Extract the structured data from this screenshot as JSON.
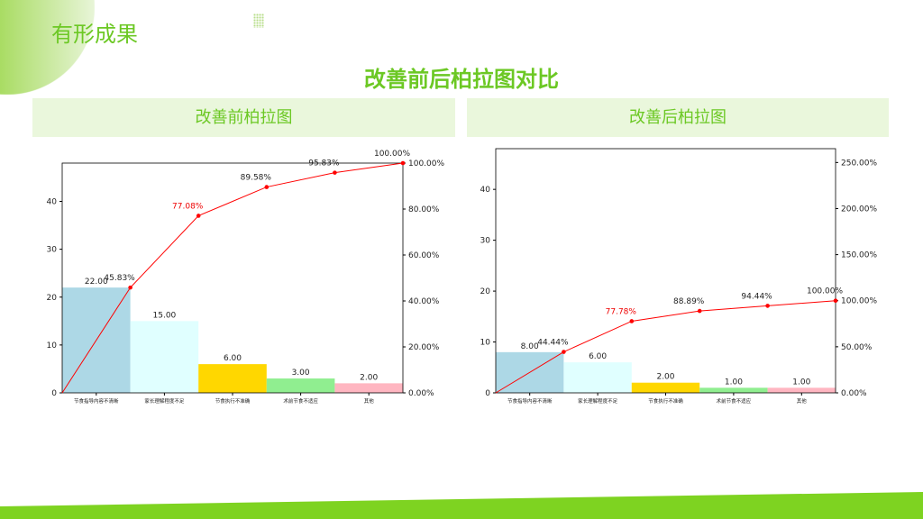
{
  "header": {
    "title": "有形成果",
    "main_title": "改善前后柏拉图对比"
  },
  "panels": [
    "改善前柏拉图",
    "改善后柏拉图"
  ],
  "chart_data": [
    {
      "type": "bar+line",
      "title": "改善前柏拉图",
      "categories": [
        "节食指导内容不清晰",
        "家长理解程度不足",
        "节食执行不准确",
        "术前节食不适应",
        "其他"
      ],
      "values": [
        22,
        15,
        6,
        3,
        2
      ],
      "value_labels": [
        "22.00",
        "15.00",
        "6.00",
        "3.00",
        "2.00"
      ],
      "cumulative_pct": [
        45.83,
        77.08,
        89.58,
        95.83,
        100
      ],
      "cumulative_labels": [
        "45.83%",
        "77.08%",
        "89.58%",
        "95.83%",
        "100.00%"
      ],
      "ylim": [
        0,
        48
      ],
      "y_ticks": [
        "0",
        "10",
        "20",
        "30",
        "40"
      ],
      "y2lim": [
        0,
        100
      ],
      "y2_ticks": [
        "0.00%",
        "20.00%",
        "40.00%",
        "60.00%",
        "80.00%",
        "100.00%"
      ],
      "bar_colors": [
        "#add8e6",
        "#e0ffff",
        "#ffd700",
        "#90ee90",
        "#ffb6c1"
      ],
      "line_color": "#ff0000",
      "highlight_index": 1
    },
    {
      "type": "bar+line",
      "title": "改善后柏拉图",
      "categories": [
        "节食指导内容不清晰",
        "家长理解程度不足",
        "节食执行不准确",
        "术前节食不适应",
        "其他"
      ],
      "values": [
        8,
        6,
        2,
        1,
        1
      ],
      "value_labels": [
        "8.00",
        "6.00",
        "2.00",
        "1.00",
        "1.00"
      ],
      "cumulative_pct": [
        44.44,
        77.78,
        88.89,
        94.44,
        100
      ],
      "cumulative_labels": [
        "44.44%",
        "77.78%",
        "88.89%",
        "94.44%",
        "100.00%"
      ],
      "ylim": [
        0,
        48
      ],
      "y_ticks": [
        "0",
        "10",
        "20",
        "30",
        "40"
      ],
      "y2lim": [
        0,
        265
      ],
      "y2_ticks": [
        "0.00%",
        "50.00%",
        "100.00%",
        "150.00%",
        "200.00%",
        "250.00%"
      ],
      "bar_colors": [
        "#add8e6",
        "#e0ffff",
        "#ffd700",
        "#90ee90",
        "#ffb6c1"
      ],
      "line_color": "#ff0000",
      "highlight_index": 1
    }
  ]
}
